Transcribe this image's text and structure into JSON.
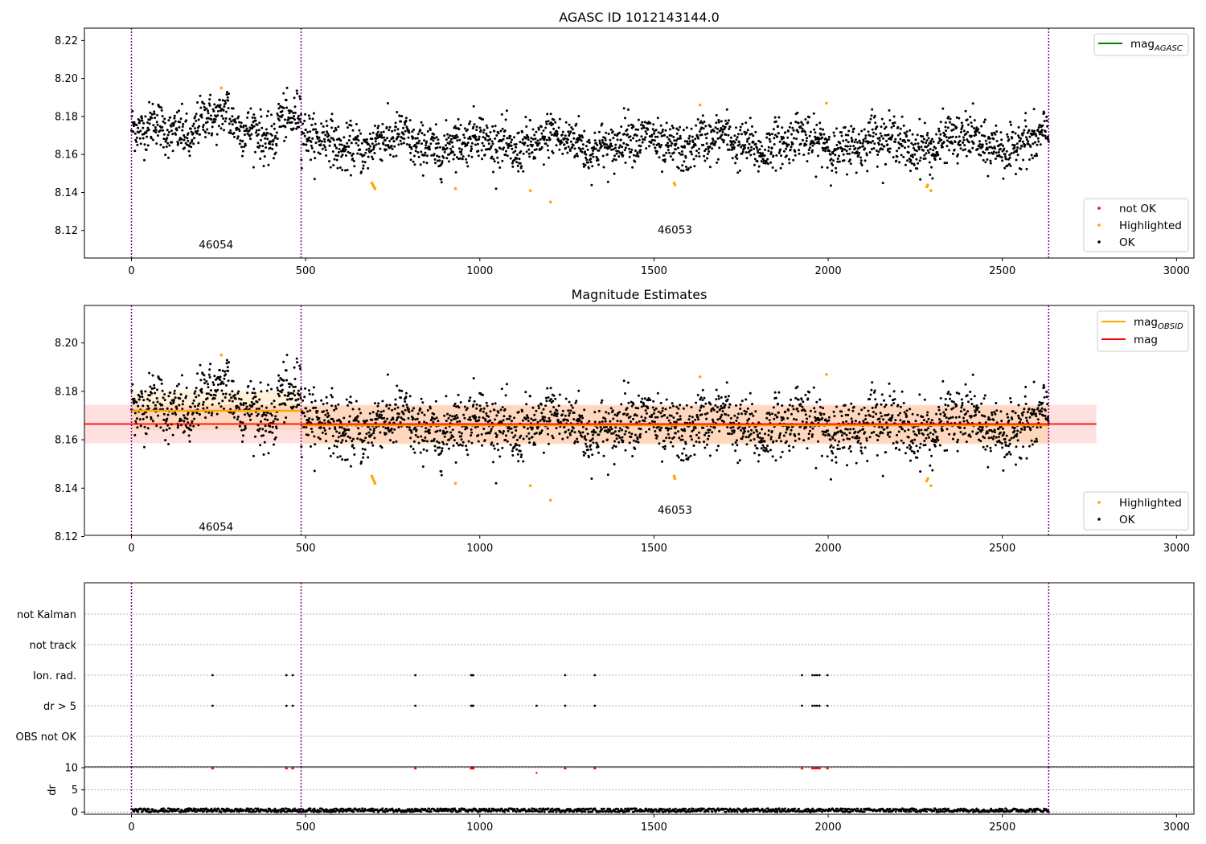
{
  "chart_data": [
    {
      "id": "agasc-panel",
      "type": "scatter",
      "title": "AGASC ID 1012143144.0",
      "xlim": [
        -135,
        3050
      ],
      "ylim": [
        8.1055,
        8.2265
      ],
      "xticks": [
        0,
        500,
        1000,
        1500,
        2000,
        2500,
        3000
      ],
      "xtick_labels": [
        "0",
        "500",
        "1000",
        "1500",
        "2000",
        "2500",
        "3000"
      ],
      "yticks": [
        8.12,
        8.14,
        8.16,
        8.18,
        8.2,
        8.22
      ],
      "ytick_labels": [
        "8.12",
        "8.14",
        "8.16",
        "8.18",
        "8.20",
        "8.22"
      ],
      "obs_boundaries": [
        0,
        487,
        2633
      ],
      "obs_labels": [
        {
          "text": "46054",
          "x": 243,
          "y": 8.1105
        },
        {
          "text": "46053",
          "x": 1560,
          "y": 8.1185
        }
      ],
      "legend_top": {
        "position": "upper right",
        "entries": [
          {
            "label": "mag",
            "sub": "AGASC",
            "color": "#008000",
            "kind": "line"
          }
        ]
      },
      "legend_bottom": {
        "position": "lower right",
        "entries": [
          {
            "label": "not OK",
            "color": "#ff0000",
            "kind": "dot"
          },
          {
            "label": "Highlighted",
            "color": "#ffa500",
            "kind": "dot"
          },
          {
            "label": "OK",
            "color": "#000000",
            "kind": "dot"
          }
        ]
      },
      "highlighted_points": [
        [
          258,
          8.195
        ],
        [
          690,
          8.145
        ],
        [
          693,
          8.144
        ],
        [
          696,
          8.143
        ],
        [
          699,
          8.142
        ],
        [
          930,
          8.142
        ],
        [
          1145,
          8.141
        ],
        [
          1203,
          8.135
        ],
        [
          1558,
          8.145
        ],
        [
          1560,
          8.144
        ],
        [
          1632,
          8.186
        ],
        [
          1995,
          8.187
        ],
        [
          2283,
          8.143
        ],
        [
          2286,
          8.144
        ],
        [
          2295,
          8.141
        ]
      ],
      "ok_series": {
        "n_points": 2630,
        "x_range": [
          0,
          2633
        ],
        "mean_segments": [
          {
            "x0": 0,
            "x1": 487,
            "mean": 8.172
          },
          {
            "x0": 487,
            "x1": 2633,
            "mean": 8.166
          }
        ],
        "scatter_sd": 0.008
      }
    },
    {
      "id": "magnitude-panel",
      "type": "scatter",
      "title": "Magnitude Estimates",
      "xlim": [
        -135,
        3050
      ],
      "ylim": [
        8.1205,
        8.2155
      ],
      "xticks": [
        0,
        500,
        1000,
        1500,
        2000,
        2500,
        3000
      ],
      "xtick_labels": [
        "0",
        "500",
        "1000",
        "1500",
        "2000",
        "2500",
        "3000"
      ],
      "yticks": [
        8.12,
        8.14,
        8.16,
        8.18,
        8.2
      ],
      "ytick_labels": [
        "8.12",
        "8.14",
        "8.16",
        "8.18",
        "8.20"
      ],
      "obs_boundaries": [
        0,
        487,
        2633
      ],
      "obs_labels": [
        {
          "text": "46054",
          "x": 243,
          "y": 8.1225
        },
        {
          "text": "46053",
          "x": 1560,
          "y": 8.1295
        }
      ],
      "mag_obsid_segments": [
        {
          "x0": 0,
          "x1": 487,
          "mean": 8.172,
          "band": [
            8.164,
            8.18
          ]
        },
        {
          "x0": 487,
          "x1": 2633,
          "mean": 8.166,
          "band": [
            8.158,
            8.174
          ]
        }
      ],
      "mag_line": {
        "value": 8.1665,
        "band": [
          8.1585,
          8.1745
        ],
        "x_range": [
          -135,
          2770
        ]
      },
      "legend_top": {
        "position": "upper right",
        "entries": [
          {
            "label": "mag",
            "sub": "OBSID",
            "color": "#ffa500",
            "kind": "line"
          },
          {
            "label": "mag",
            "color": "#ff0000",
            "kind": "line"
          }
        ]
      },
      "legend_bottom": {
        "position": "lower right",
        "entries": [
          {
            "label": "Highlighted",
            "color": "#ffa500",
            "kind": "dot"
          },
          {
            "label": "OK",
            "color": "#000000",
            "kind": "dot"
          }
        ]
      },
      "highlighted_points": [
        [
          258,
          8.195
        ],
        [
          690,
          8.145
        ],
        [
          693,
          8.144
        ],
        [
          696,
          8.143
        ],
        [
          699,
          8.142
        ],
        [
          930,
          8.142
        ],
        [
          1145,
          8.141
        ],
        [
          1203,
          8.135
        ],
        [
          1558,
          8.145
        ],
        [
          1560,
          8.144
        ],
        [
          1632,
          8.186
        ],
        [
          1995,
          8.187
        ],
        [
          2283,
          8.143
        ],
        [
          2286,
          8.144
        ],
        [
          2295,
          8.141
        ]
      ]
    },
    {
      "id": "flags-panel",
      "type": "scatter",
      "xlim": [
        -135,
        3050
      ],
      "categories": [
        "not Kalman",
        "not track",
        "Ion. rad.",
        "dr > 5",
        "OBS not OK"
      ],
      "flag_points": {
        "Ion. rad.": [
          233,
          445,
          463,
          815,
          975,
          978,
          981,
          1245,
          1330,
          1925,
          1955,
          1962,
          1968,
          1975,
          1998
        ],
        "dr > 5": [
          233,
          445,
          463,
          815,
          975,
          978,
          981,
          1163,
          1245,
          1330,
          1925,
          1955,
          1962,
          1968,
          1975,
          1998
        ]
      },
      "obs_boundaries": [
        0,
        487,
        2633
      ]
    },
    {
      "id": "dr-panel",
      "type": "scatter",
      "ylabel": "dr",
      "xlim": [
        -135,
        3050
      ],
      "ylim": [
        -0.5,
        10.2
      ],
      "yticks": [
        0,
        5,
        10
      ],
      "ytick_labels": [
        "0",
        "5",
        "10"
      ],
      "xticks": [
        0,
        500,
        1000,
        1500,
        2000,
        2500,
        3000
      ],
      "xtick_labels": [
        "0",
        "500",
        "1000",
        "1500",
        "2000",
        "2500",
        "3000"
      ],
      "clipped_points": [
        233,
        445,
        463,
        815,
        975,
        978,
        981,
        1245,
        1330,
        1925,
        1955,
        1962,
        1968,
        1975,
        1998
      ],
      "mid_points": [
        [
          1163,
          8.8
        ]
      ],
      "baseline_range": [
        0,
        0.9
      ],
      "obs_boundaries": [
        0,
        487,
        2633
      ]
    }
  ],
  "colors": {
    "ok": "#000000",
    "highlighted": "#ffa500",
    "not_ok": "#ff0000",
    "agasc_line": "#008000",
    "obsid_line": "#ffa500",
    "mag_line": "#ff0000",
    "boundary": "#800080"
  }
}
